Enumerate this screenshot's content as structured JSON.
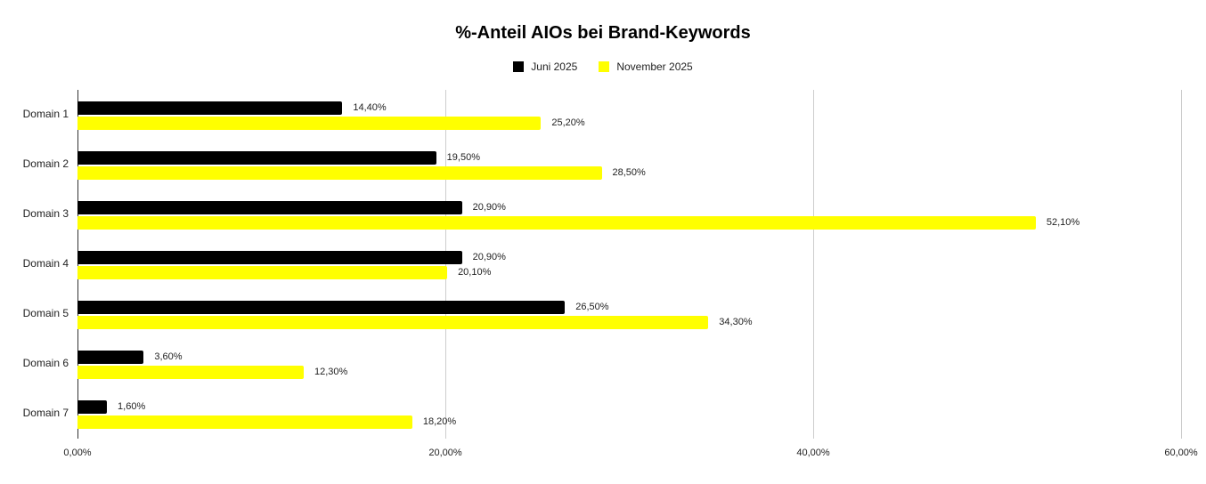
{
  "chart_data": {
    "type": "bar",
    "orientation": "horizontal",
    "title": "%-Anteil AIOs bei Brand-Keywords",
    "xlabel": "",
    "ylabel": "",
    "categories": [
      "Domain 1",
      "Domain 2",
      "Domain 3",
      "Domain 4",
      "Domain 5",
      "Domain 6",
      "Domain 7"
    ],
    "series": [
      {
        "name": "Juni 2025",
        "color": "#000000",
        "values": [
          14.4,
          19.5,
          20.9,
          20.9,
          26.5,
          3.6,
          1.6
        ],
        "labels": [
          "14,40%",
          "19,50%",
          "20,90%",
          "20,90%",
          "26,50%",
          "3,60%",
          "1,60%"
        ]
      },
      {
        "name": "November 2025",
        "color": "#ffff00",
        "values": [
          25.2,
          28.5,
          52.1,
          20.1,
          34.3,
          12.3,
          18.2
        ],
        "labels": [
          "25,20%",
          "28,50%",
          "52,10%",
          "20,10%",
          "34,30%",
          "12,30%",
          "18,20%"
        ]
      }
    ],
    "xlim": [
      0,
      60
    ],
    "xticks": [
      0,
      20,
      40,
      60
    ],
    "xtick_labels": [
      "0,00%",
      "20,00%",
      "40,00%",
      "60,00%"
    ],
    "grid": true,
    "legend_position": "top"
  },
  "legend": [
    {
      "label": "Juni 2025",
      "color": "#000000"
    },
    {
      "label": "November 2025",
      "color": "#ffff00"
    }
  ]
}
